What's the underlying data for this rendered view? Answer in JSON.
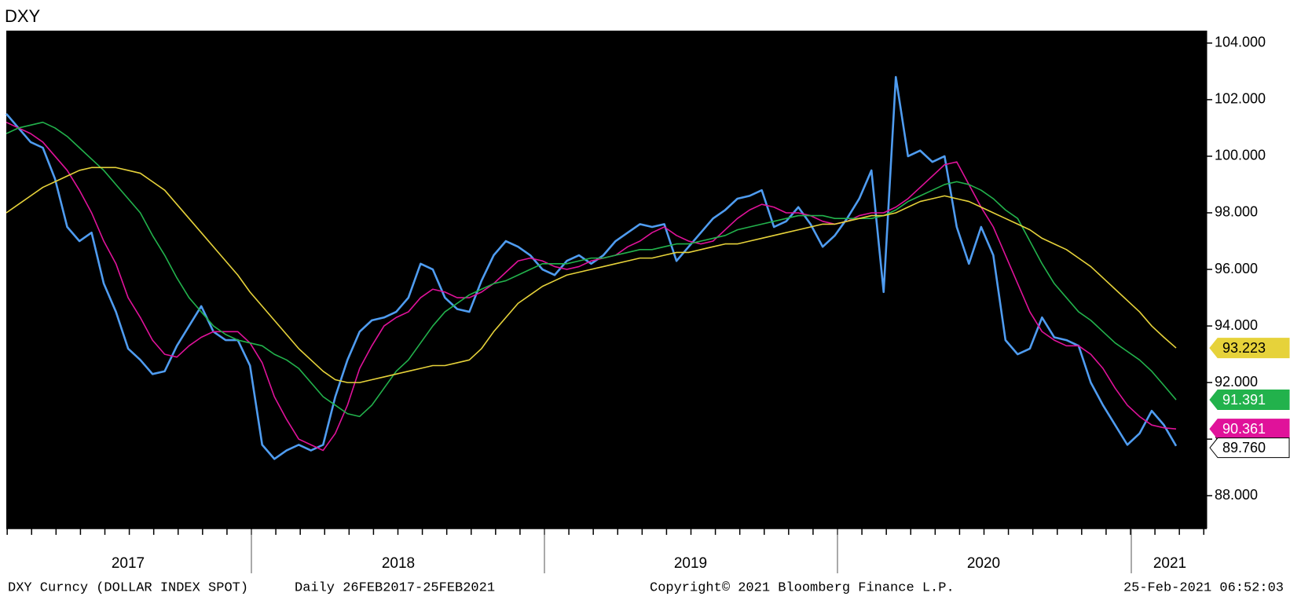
{
  "chart_data": {
    "type": "line",
    "title": "DXY",
    "footer": {
      "security": "DXY Curncy (DOLLAR INDEX SPOT)",
      "range": "Daily 26FEB2017-25FEB2021",
      "copyright": "Copyright© 2021 Bloomberg Finance L.P.",
      "timestamp": "25-Feb-2021 06:52:03"
    },
    "x_axis_labels": [
      "2017",
      "2018",
      "2019",
      "2020",
      "2021"
    ],
    "background": "#000000",
    "ylim": [
      86.84,
      104.44
    ],
    "yticks": [
      {
        "value": 88,
        "label": "88.000"
      },
      {
        "value": 90,
        "label": "90.000"
      },
      {
        "value": 92,
        "label": "92.000"
      },
      {
        "value": 94,
        "label": "94.000"
      },
      {
        "value": 96,
        "label": "96.000"
      },
      {
        "value": 98,
        "label": "98.000"
      },
      {
        "value": 100,
        "label": "100.000"
      },
      {
        "value": 102,
        "label": "102.000"
      },
      {
        "value": 104,
        "label": "104.000"
      }
    ],
    "series": [
      {
        "color": "#4f9cf0",
        "last_label": "89.760",
        "values": [
          101.5,
          101.0,
          100.5,
          100.3,
          99.2,
          97.5,
          97.0,
          97.3,
          95.5,
          94.5,
          93.2,
          92.8,
          92.3,
          92.4,
          93.3,
          94.0,
          94.7,
          93.8,
          93.5,
          93.5,
          92.6,
          89.8,
          89.3,
          89.6,
          89.8,
          89.6,
          89.8,
          91.5,
          92.8,
          93.8,
          94.2,
          94.3,
          94.5,
          95.0,
          96.2,
          96.0,
          95.0,
          94.6,
          94.5,
          95.6,
          96.5,
          97.0,
          96.8,
          96.5,
          96.0,
          95.8,
          96.3,
          96.5,
          96.2,
          96.5,
          97.0,
          97.3,
          97.6,
          97.5,
          97.6,
          96.3,
          96.8,
          97.3,
          97.8,
          98.1,
          98.5,
          98.6,
          98.8,
          97.5,
          97.7,
          98.2,
          97.6,
          96.8,
          97.2,
          97.8,
          98.5,
          99.5,
          95.2,
          102.8,
          100.0,
          100.2,
          99.8,
          100.0,
          97.5,
          96.2,
          97.5,
          96.5,
          93.5,
          93.0,
          93.2,
          94.3,
          93.6,
          93.5,
          93.3,
          92.0,
          91.2,
          90.5,
          89.8,
          90.2,
          91.0,
          90.5,
          89.76
        ]
      },
      {
        "color": "#e0129a",
        "last_label": "90.361",
        "values": [
          101.2,
          101.0,
          100.8,
          100.5,
          100.0,
          99.5,
          98.8,
          98.0,
          97.0,
          96.2,
          95.0,
          94.3,
          93.5,
          93.0,
          92.9,
          93.3,
          93.6,
          93.8,
          93.8,
          93.8,
          93.4,
          92.7,
          91.5,
          90.7,
          90.0,
          89.8,
          89.6,
          90.2,
          91.2,
          92.5,
          93.3,
          94.0,
          94.3,
          94.5,
          95.0,
          95.3,
          95.2,
          95.0,
          95.0,
          95.2,
          95.5,
          95.9,
          96.3,
          96.4,
          96.3,
          96.1,
          96.0,
          96.1,
          96.3,
          96.4,
          96.5,
          96.8,
          97.0,
          97.3,
          97.5,
          97.2,
          97.0,
          96.9,
          97.0,
          97.4,
          97.8,
          98.1,
          98.3,
          98.2,
          98.0,
          98.0,
          97.9,
          97.7,
          97.6,
          97.7,
          97.9,
          98.0,
          98.0,
          98.2,
          98.5,
          98.9,
          99.3,
          99.7,
          99.8,
          99.0,
          98.2,
          97.5,
          96.5,
          95.5,
          94.5,
          93.8,
          93.5,
          93.3,
          93.3,
          93.0,
          92.5,
          91.8,
          91.2,
          90.8,
          90.5,
          90.4,
          90.361
        ]
      },
      {
        "color": "#22b24c",
        "last_label": "91.391",
        "values": [
          100.8,
          101.0,
          101.1,
          101.2,
          101.0,
          100.7,
          100.3,
          99.9,
          99.5,
          99.0,
          98.5,
          98.0,
          97.2,
          96.5,
          95.7,
          95.0,
          94.5,
          94.0,
          93.7,
          93.5,
          93.4,
          93.3,
          93.0,
          92.8,
          92.5,
          92.0,
          91.5,
          91.2,
          90.9,
          90.8,
          91.2,
          91.8,
          92.4,
          92.8,
          93.4,
          94.0,
          94.5,
          94.8,
          95.1,
          95.3,
          95.5,
          95.6,
          95.8,
          96.0,
          96.2,
          96.2,
          96.2,
          96.3,
          96.4,
          96.4,
          96.5,
          96.6,
          96.7,
          96.7,
          96.8,
          96.9,
          96.9,
          97.0,
          97.1,
          97.2,
          97.4,
          97.5,
          97.6,
          97.7,
          97.8,
          97.9,
          97.9,
          97.9,
          97.8,
          97.8,
          97.8,
          97.8,
          97.9,
          98.1,
          98.4,
          98.6,
          98.8,
          99.0,
          99.1,
          99.0,
          98.8,
          98.5,
          98.1,
          97.8,
          97.0,
          96.2,
          95.5,
          95.0,
          94.5,
          94.2,
          93.8,
          93.4,
          93.1,
          92.8,
          92.4,
          91.9,
          91.391
        ]
      },
      {
        "color": "#e6d23a",
        "last_label": "93.223",
        "values": [
          98.0,
          98.3,
          98.6,
          98.9,
          99.1,
          99.3,
          99.5,
          99.6,
          99.6,
          99.6,
          99.5,
          99.4,
          99.1,
          98.8,
          98.3,
          97.8,
          97.3,
          96.8,
          96.3,
          95.8,
          95.2,
          94.7,
          94.2,
          93.7,
          93.2,
          92.8,
          92.4,
          92.1,
          92.0,
          92.0,
          92.1,
          92.2,
          92.3,
          92.4,
          92.5,
          92.6,
          92.6,
          92.7,
          92.8,
          93.2,
          93.8,
          94.3,
          94.8,
          95.1,
          95.4,
          95.6,
          95.8,
          95.9,
          96.0,
          96.1,
          96.2,
          96.3,
          96.4,
          96.4,
          96.5,
          96.6,
          96.6,
          96.7,
          96.8,
          96.9,
          96.9,
          97.0,
          97.1,
          97.2,
          97.3,
          97.4,
          97.5,
          97.6,
          97.6,
          97.7,
          97.8,
          97.9,
          97.9,
          98.0,
          98.2,
          98.4,
          98.5,
          98.6,
          98.5,
          98.4,
          98.2,
          98.0,
          97.8,
          97.6,
          97.4,
          97.1,
          96.9,
          96.7,
          96.4,
          96.1,
          95.7,
          95.3,
          94.9,
          94.5,
          94.0,
          93.6,
          93.223
        ]
      }
    ]
  }
}
